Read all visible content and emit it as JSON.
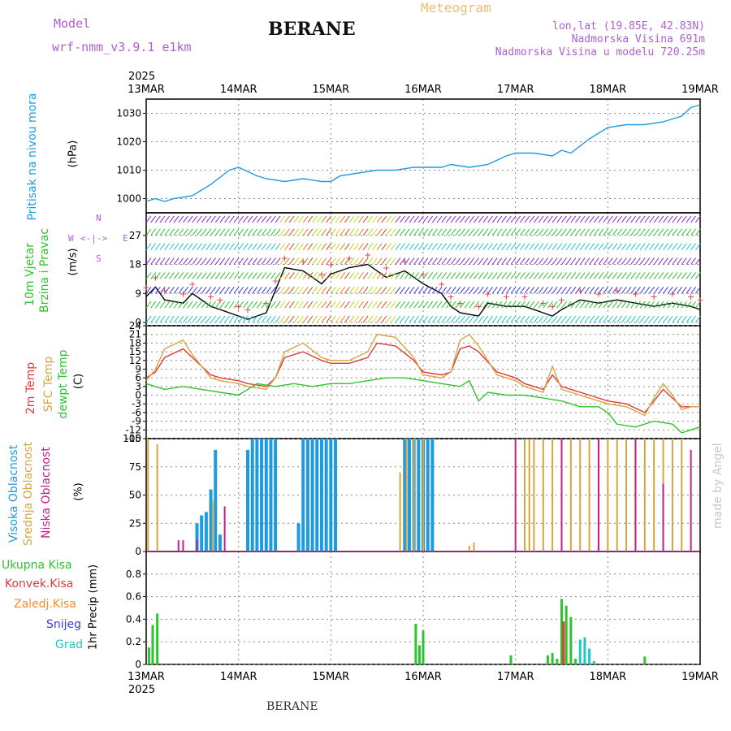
{
  "header": {
    "model_label": "Model",
    "model_name": "wrf-nmm_v3.9.1 e1km",
    "station": "BERANE",
    "title": "Meteogram",
    "coords": "lon,lat (19.85E, 42.83N)",
    "elevation": "Nadmorska Visina 691m",
    "model_elevation": "Nadmorska Visina u modelu 720.25m",
    "footer_station": "BERANE",
    "credit": "made by Angel"
  },
  "colors": {
    "pressure": "#1e9be0",
    "wind_speed_black": "#000000",
    "wind_gust": "#e23a3a",
    "temp_2m": "#e23a3a",
    "temp_sfc": "#d4a640",
    "dewpoint": "#2ec42e",
    "cloud_high": "#1e9be0",
    "cloud_mid": "#d4a640",
    "cloud_low": "#c0208a",
    "precip_total": "#2ec42e",
    "precip_conv": "#e23a3a",
    "precip_strat": "#ff8c2a",
    "snow": "#3a3ae0",
    "hail": "#1ec8c8"
  },
  "panel_labels": {
    "pressure": [
      "Pritisak na nivou mora",
      "(hPa)"
    ],
    "wind": [
      "10m Vjetar",
      "Brzina i Pravac",
      "(m/s)"
    ],
    "wind_compass": [
      "N",
      "W",
      "<-|->",
      "E",
      "S"
    ],
    "temperature": [
      "2m Temp",
      "SFC Temp",
      "dewpt Temp",
      "(C)"
    ],
    "cloud": [
      "Visoka Oblacnost",
      "Srednja Oblacnost",
      "Niska Oblacnost",
      "(%)"
    ],
    "precip": [
      "Ukupna Kisa",
      "Konvek.Kisa",
      "Zaledj.Kisa",
      "Snijeg",
      "Grad",
      "1hr Precip (mm)"
    ]
  },
  "chart_data": [
    {
      "type": "line",
      "panel": "pressure",
      "x_categories": [
        "13MAR",
        "14MAR",
        "15MAR",
        "16MAR",
        "17MAR",
        "18MAR",
        "19MAR"
      ],
      "year": "2025",
      "ylim": [
        995,
        1035
      ],
      "yticks": [
        "1000",
        "1010",
        "1020",
        "1030"
      ],
      "grid": true,
      "series": [
        {
          "x": [
            0,
            0.1,
            0.2,
            0.3,
            0.5,
            0.7,
            0.9,
            1.0,
            1.2,
            1.3,
            1.5,
            1.7,
            1.9,
            2.0,
            2.1,
            2.3,
            2.5,
            2.7,
            2.9,
            3.0,
            3.2,
            3.3,
            3.5,
            3.7,
            3.9,
            4.0,
            4.2,
            4.4,
            4.5,
            4.6,
            4.8,
            5.0,
            5.2,
            5.4,
            5.6,
            5.8,
            5.9,
            6.0
          ],
          "values": [
            999,
            1000,
            999,
            1000,
            1001,
            1005,
            1010,
            1011,
            1008,
            1007,
            1006,
            1007,
            1006,
            1006,
            1008,
            1009,
            1010,
            1010,
            1011,
            1011,
            1011,
            1012,
            1011,
            1012,
            1015,
            1016,
            1016,
            1015,
            1017,
            1016,
            1021,
            1025,
            1026,
            1026,
            1027,
            1029,
            1032,
            1033
          ]
        }
      ]
    },
    {
      "type": "line",
      "panel": "wind",
      "ylim": [
        -1,
        34
      ],
      "yticks": [
        "0",
        "9",
        "18",
        "27"
      ],
      "grid": true,
      "series": [
        {
          "x": [
            0,
            0.1,
            0.2,
            0.4,
            0.5,
            0.7,
            0.8,
            1.0,
            1.1,
            1.3,
            1.4,
            1.5,
            1.7,
            1.9,
            2.0,
            2.2,
            2.4,
            2.6,
            2.8,
            3.0,
            3.2,
            3.3,
            3.4,
            3.6,
            3.7,
            3.9,
            4.1,
            4.3,
            4.4,
            4.5,
            4.7,
            4.9,
            5.1,
            5.3,
            5.5,
            5.7,
            5.9,
            6.0
          ],
          "values": [
            8,
            11,
            7,
            6,
            9,
            5,
            4,
            2,
            1,
            3,
            10,
            17,
            16,
            12,
            15,
            17,
            18,
            14,
            16,
            12,
            9,
            5,
            3,
            2,
            6,
            5,
            5,
            3,
            2,
            4,
            7,
            6,
            7,
            6,
            5,
            6,
            5,
            4
          ]
        }
      ]
    },
    {
      "type": "line",
      "panel": "temperature",
      "ylim": [
        -15,
        24
      ],
      "yticks": [
        "24",
        "21",
        "18",
        "15",
        "12",
        "9",
        "6",
        "3",
        "0",
        "-3",
        "-6",
        "-9",
        "-12",
        "-15"
      ],
      "grid": true,
      "series": [
        {
          "name": "2m Temp",
          "x": [
            0,
            0.1,
            0.2,
            0.4,
            0.5,
            0.7,
            0.8,
            1.0,
            1.1,
            1.3,
            1.4,
            1.5,
            1.7,
            1.9,
            2.0,
            2.2,
            2.4,
            2.5,
            2.7,
            2.9,
            3.0,
            3.2,
            3.3,
            3.4,
            3.5,
            3.6,
            3.8,
            4.0,
            4.1,
            4.2,
            4.3,
            4.4,
            4.5,
            4.6,
            4.8,
            5.0,
            5.2,
            5.4,
            5.5,
            5.6,
            5.7,
            5.8,
            5.9,
            6.0
          ],
          "values": [
            6,
            8,
            13,
            16,
            13,
            7,
            6,
            5,
            4,
            3,
            6,
            13,
            15,
            12,
            11,
            11,
            13,
            18,
            17,
            12,
            8,
            7,
            8,
            16,
            17,
            15,
            8,
            6,
            4,
            3,
            2,
            7,
            3,
            2,
            0,
            -2,
            -3,
            -6,
            -2,
            2,
            -1,
            -4,
            -4,
            -4
          ]
        },
        {
          "name": "SFC Temp",
          "x": [
            0,
            0.1,
            0.2,
            0.4,
            0.5,
            0.7,
            0.8,
            1.0,
            1.1,
            1.3,
            1.4,
            1.5,
            1.7,
            1.9,
            2.0,
            2.2,
            2.4,
            2.5,
            2.7,
            2.9,
            3.0,
            3.2,
            3.3,
            3.4,
            3.5,
            3.6,
            3.8,
            4.0,
            4.1,
            4.2,
            4.3,
            4.4,
            4.5,
            4.6,
            4.8,
            5.0,
            5.2,
            5.4,
            5.5,
            5.6,
            5.7,
            5.8,
            5.9,
            6.0
          ],
          "values": [
            5,
            9,
            16,
            19,
            14,
            6,
            5,
            4,
            3,
            2,
            6,
            15,
            18,
            13,
            12,
            12,
            15,
            21,
            20,
            13,
            7,
            6,
            8,
            19,
            21,
            17,
            7,
            5,
            3,
            2,
            1,
            10,
            2,
            1,
            -1,
            -3,
            -4,
            -7,
            -1,
            4,
            0,
            -5,
            -4,
            -4
          ]
        },
        {
          "name": "dewpt Temp",
          "x": [
            0,
            0.2,
            0.4,
            0.6,
            0.8,
            1.0,
            1.2,
            1.4,
            1.6,
            1.8,
            2.0,
            2.2,
            2.4,
            2.6,
            2.8,
            3.0,
            3.2,
            3.4,
            3.5,
            3.6,
            3.7,
            3.9,
            4.1,
            4.3,
            4.5,
            4.7,
            4.9,
            5.0,
            5.1,
            5.3,
            5.5,
            5.7,
            5.8,
            5.9,
            6.0
          ],
          "values": [
            4,
            2,
            3,
            2,
            1,
            0,
            4,
            3,
            4,
            3,
            4,
            4,
            5,
            6,
            6,
            5,
            4,
            3,
            5,
            -2,
            1,
            0,
            0,
            -1,
            -2,
            -4,
            -4,
            -6,
            -10,
            -11,
            -9,
            -10,
            -13,
            -12,
            -11
          ]
        }
      ]
    },
    {
      "type": "bar",
      "panel": "cloud",
      "ylim": [
        0,
        100
      ],
      "yticks": [
        "0",
        "25",
        "50",
        "75",
        "100"
      ],
      "grid": true,
      "series": [
        {
          "name": "Visoka Oblacnost",
          "x": [
            0.55,
            0.6,
            0.65,
            0.7,
            0.75,
            0.8,
            1.1,
            1.15,
            1.2,
            1.25,
            1.3,
            1.35,
            1.4,
            1.65,
            1.7,
            1.75,
            1.8,
            1.85,
            1.9,
            1.95,
            2.0,
            2.05,
            2.8,
            2.85,
            2.9,
            2.95,
            3.0,
            3.05,
            3.1
          ],
          "values": [
            25,
            32,
            35,
            55,
            90,
            15,
            90,
            100,
            100,
            100,
            100,
            100,
            100,
            25,
            100,
            100,
            100,
            100,
            100,
            100,
            100,
            100,
            100,
            100,
            100,
            100,
            100,
            100,
            100
          ]
        },
        {
          "name": "Srednja Oblacnost",
          "x": [
            0.02,
            0.12,
            0.72,
            2.75,
            2.82,
            2.9,
            3.0,
            3.5,
            3.55,
            4.1,
            4.15,
            4.2,
            4.3,
            4.4,
            4.5,
            4.6,
            4.7,
            4.8,
            4.9,
            5.0,
            5.1,
            5.2,
            5.3,
            5.4,
            5.5,
            5.6,
            5.7,
            5.8
          ],
          "values": [
            100,
            95,
            45,
            70,
            100,
            100,
            100,
            5,
            8,
            100,
            100,
            100,
            100,
            100,
            100,
            100,
            100,
            100,
            100,
            100,
            100,
            100,
            100,
            100,
            100,
            100,
            100,
            100
          ]
        },
        {
          "name": "Niska Oblacnost",
          "x": [
            0.35,
            0.4,
            0.55,
            0.85,
            4.0,
            4.5,
            4.9,
            5.3,
            5.6,
            5.9
          ],
          "values": [
            10,
            10,
            10,
            40,
            100,
            100,
            100,
            100,
            60,
            90
          ]
        }
      ]
    },
    {
      "type": "bar",
      "panel": "precip",
      "ylim": [
        0,
        1.0
      ],
      "yticks": [
        "0",
        "0.2",
        "0.4",
        "0.6",
        "0.8"
      ],
      "grid": true,
      "series": [
        {
          "name": "Ukupna Kisa",
          "x": [
            0.03,
            0.07,
            0.12,
            2.92,
            2.96,
            3.0,
            3.95,
            4.35,
            4.4,
            4.45,
            4.5,
            4.55,
            4.6,
            4.65,
            4.75,
            5.4
          ],
          "values": [
            0.15,
            0.35,
            0.45,
            0.36,
            0.17,
            0.3,
            0.08,
            0.08,
            0.1,
            0.05,
            0.58,
            0.52,
            0.42,
            0.05,
            0.05,
            0.07
          ]
        },
        {
          "name": "Konvek.Kisa",
          "x": [
            4.52
          ],
          "values": [
            0.38
          ]
        },
        {
          "name": "Grad",
          "x": [
            4.7,
            4.75,
            4.8,
            4.85
          ],
          "values": [
            0.22,
            0.24,
            0.14,
            0.03
          ]
        }
      ]
    }
  ]
}
